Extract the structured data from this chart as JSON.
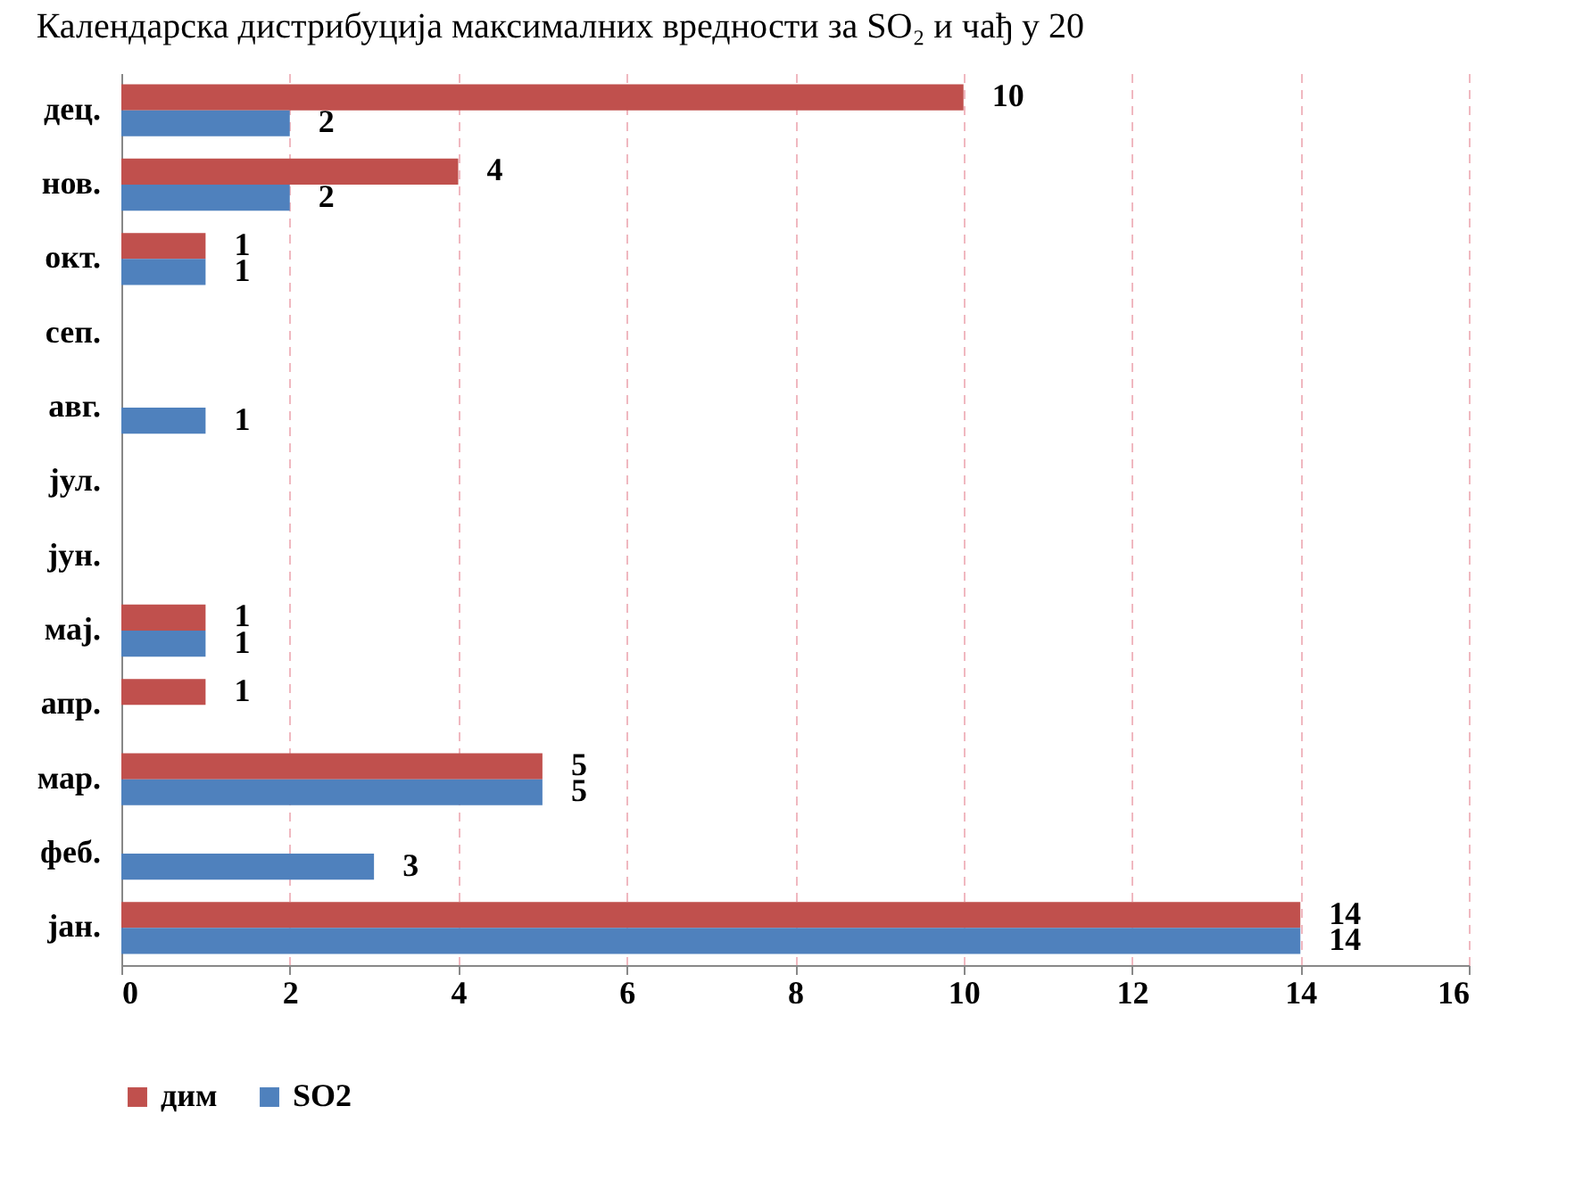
{
  "chart_data": {
    "type": "bar",
    "orientation": "horizontal",
    "title": "Календарска дистрибуција максималних вредности за SO₂ и чађ у 20",
    "categories": [
      "дец.",
      "нов.",
      "окт.",
      "сеп.",
      "авг.",
      "јул.",
      "јун.",
      "мај.",
      "апр.",
      "мар.",
      "феб.",
      "јан."
    ],
    "series": [
      {
        "name": "дим",
        "color": "#c0504d",
        "values": [
          10,
          4,
          1,
          null,
          null,
          null,
          null,
          1,
          1,
          5,
          null,
          14
        ]
      },
      {
        "name": "SO2",
        "color": "#4f81bd",
        "values": [
          2,
          2,
          1,
          null,
          1,
          null,
          null,
          1,
          null,
          5,
          3,
          14
        ]
      }
    ],
    "xlim": [
      0,
      16
    ],
    "xticks": [
      0,
      2,
      4,
      6,
      8,
      10,
      12,
      14,
      16
    ],
    "grid": "x",
    "legend": "bottom",
    "data_labels": true
  }
}
